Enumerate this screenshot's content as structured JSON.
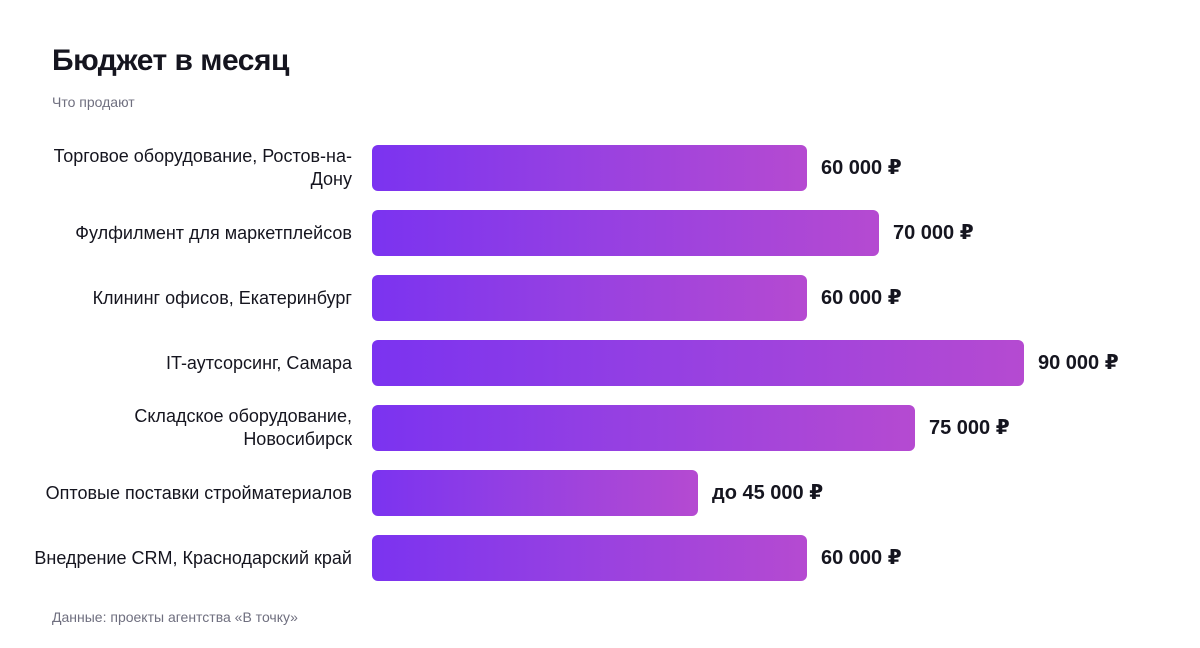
{
  "header": {
    "title": "Бюджет в месяц",
    "subtitle": "Что продают"
  },
  "footer": {
    "source": "Данные: проекты агентства «В точку»"
  },
  "colors": {
    "bar_gradient_start": "#7b33f0",
    "bar_gradient_end": "#b54ad1",
    "text": "#15151f",
    "muted_text": "#6f6f7f"
  },
  "chart_data": {
    "type": "bar",
    "orientation": "horizontal",
    "title": "Бюджет в месяц",
    "subtitle": "Что продают",
    "xlabel": "",
    "ylabel": "",
    "grid": false,
    "categories": [
      "Торговое оборудование, Ростов-на-Дону",
      "Фулфилмент для маркетплейсов",
      "Клининг офисов, Екатеринбург",
      "IT-аутсорсинг, Самара",
      "Складское оборудование, Новосибирск",
      "Оптовые поставки стройматериалов",
      "Внедрение CRM, Краснодарский край"
    ],
    "values": [
      60000,
      70000,
      60000,
      90000,
      75000,
      45000,
      60000
    ],
    "value_labels": [
      "60 000 ₽",
      "70 000 ₽",
      "60 000 ₽",
      "90 000 ₽",
      "75 000 ₽",
      "до 45 000 ₽",
      "60 000 ₽"
    ],
    "xlim": [
      0,
      90000
    ]
  }
}
